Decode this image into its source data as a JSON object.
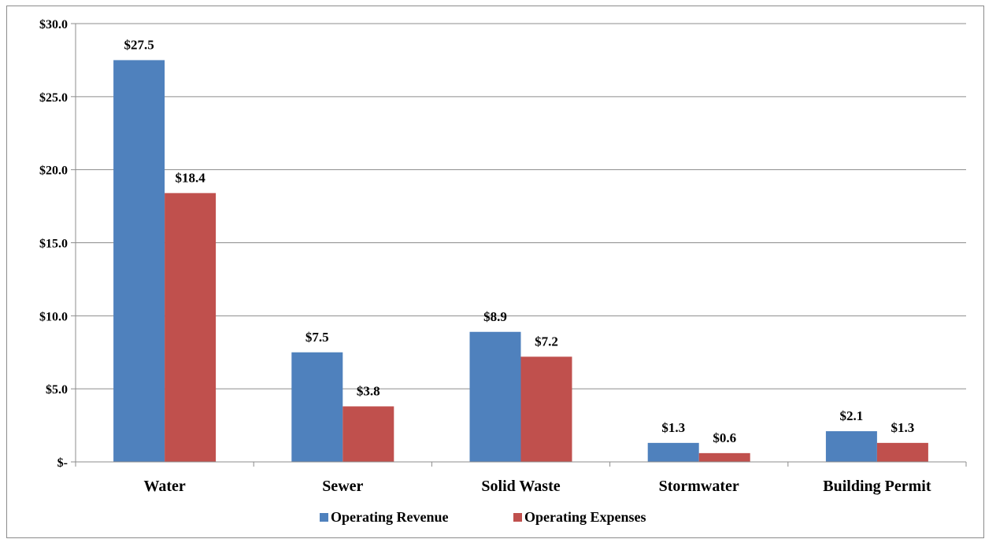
{
  "chart_data": {
    "type": "bar",
    "title": "",
    "xlabel": "",
    "ylabel": "",
    "categories": [
      "Water",
      "Sewer",
      "Solid Waste",
      "Stormwater",
      "Building Permit"
    ],
    "series": [
      {
        "name": "Operating Revenue",
        "color": "#4f81bd",
        "values": [
          27.5,
          7.5,
          8.9,
          1.3,
          2.1
        ],
        "labels": [
          "$27.5",
          "$7.5",
          "$8.9",
          "$1.3",
          "$2.1"
        ]
      },
      {
        "name": "Operating Expenses",
        "color": "#c0504d",
        "values": [
          18.4,
          3.8,
          7.2,
          0.6,
          1.3
        ],
        "labels": [
          "$18.4",
          "$3.8",
          "$7.2",
          "$0.6",
          "$1.3"
        ]
      }
    ],
    "ylim": [
      0,
      30
    ],
    "yticks": [
      0,
      5,
      10,
      15,
      20,
      25,
      30
    ],
    "ytick_labels": [
      "$-",
      "$5.0",
      "$10.0",
      "$15.0",
      "$20.0",
      "$25.0",
      "$30.0"
    ],
    "grid": true,
    "legend_position": "bottom"
  }
}
